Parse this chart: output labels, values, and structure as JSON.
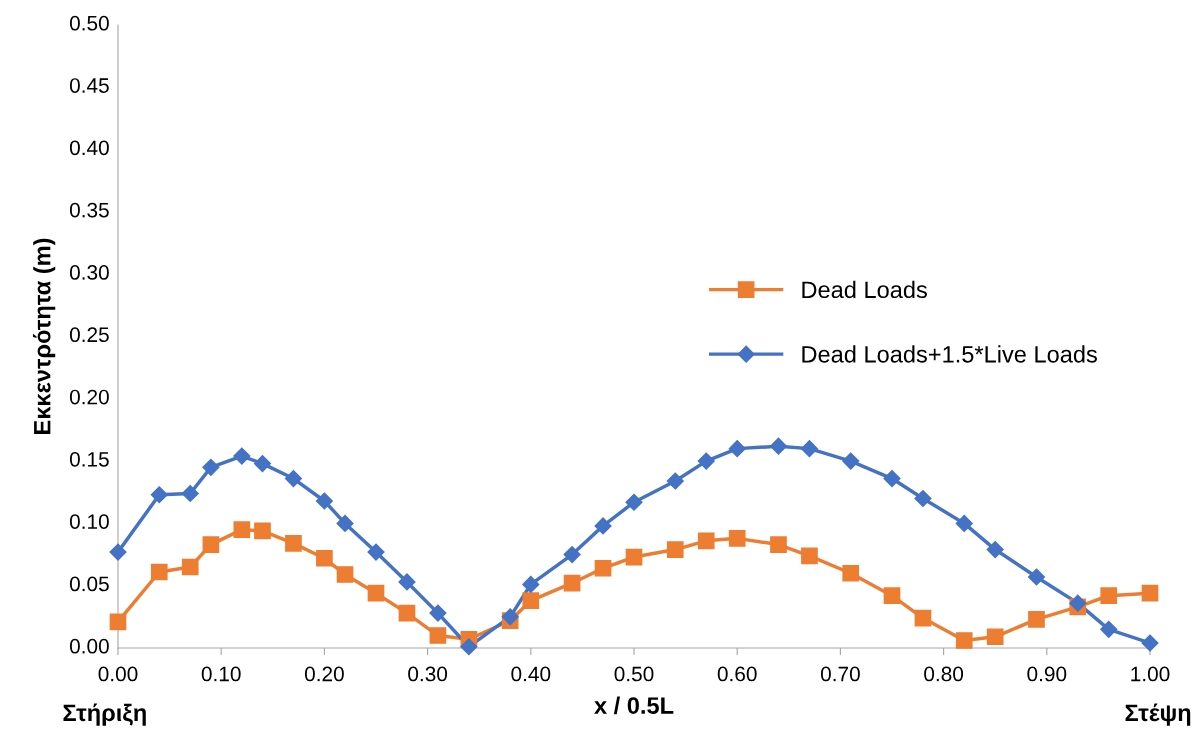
{
  "chart_data": {
    "type": "line",
    "xlabel": "x / 0.5L",
    "ylabel": "Εκκεντρότητα (m)",
    "x": [
      0,
      0.04,
      0.07,
      0.09,
      0.12,
      0.14,
      0.17,
      0.2,
      0.22,
      0.25,
      0.28,
      0.31,
      0.34,
      0.38,
      0.4,
      0.44,
      0.47,
      0.5,
      0.54,
      0.57,
      0.6,
      0.64,
      0.67,
      0.71,
      0.75,
      0.78,
      0.82,
      0.85,
      0.89,
      0.93,
      0.96,
      1.0
    ],
    "series": [
      {
        "name": "Dead Loads",
        "color": "#ed7d31",
        "marker": "square",
        "values": [
          0.021,
          0.061,
          0.065,
          0.083,
          0.095,
          0.094,
          0.084,
          0.072,
          0.059,
          0.044,
          0.028,
          0.01,
          0.007,
          0.022,
          0.038,
          0.052,
          0.064,
          0.073,
          0.079,
          0.086,
          0.088,
          0.083,
          0.074,
          0.06,
          0.042,
          0.024,
          0.006,
          0.009,
          0.023,
          0.033,
          0.042,
          0.044
        ]
      },
      {
        "name": "Dead Loads+1.5*Live Loads",
        "color": "#4472c4",
        "marker": "diamond",
        "values": [
          0.077,
          0.123,
          0.124,
          0.145,
          0.154,
          0.148,
          0.136,
          0.118,
          0.1,
          0.077,
          0.053,
          0.028,
          0.001,
          0.025,
          0.051,
          0.075,
          0.098,
          0.117,
          0.134,
          0.15,
          0.16,
          0.162,
          0.16,
          0.15,
          0.136,
          0.12,
          0.1,
          0.079,
          0.057,
          0.036,
          0.015,
          0.004
        ]
      }
    ],
    "xlim": [
      0,
      1
    ],
    "xticks": [
      {
        "value": 0,
        "label": "0.00"
      },
      {
        "value": 0.1,
        "label": "0.10"
      },
      {
        "value": 0.2,
        "label": "0.20"
      },
      {
        "value": 0.3,
        "label": "0.30"
      },
      {
        "value": 0.4,
        "label": "0.40"
      },
      {
        "value": 0.5,
        "label": "0.50"
      },
      {
        "value": 0.6,
        "label": "0.60"
      },
      {
        "value": 0.7,
        "label": "0.70"
      },
      {
        "value": 0.8,
        "label": "0.80"
      },
      {
        "value": 0.9,
        "label": "0.90"
      },
      {
        "value": 1,
        "label": "1.00"
      }
    ],
    "ylim": [
      0,
      0.5
    ],
    "yticks": [
      {
        "value": 0,
        "label": "0.00"
      },
      {
        "value": 0.05,
        "label": "0.05"
      },
      {
        "value": 0.1,
        "label": "0.10"
      },
      {
        "value": 0.15,
        "label": "0.15"
      },
      {
        "value": 0.2,
        "label": "0.20"
      },
      {
        "value": 0.25,
        "label": "0.25"
      },
      {
        "value": 0.3,
        "label": "0.30"
      },
      {
        "value": 0.35,
        "label": "0.35"
      },
      {
        "value": 0.4,
        "label": "0.40"
      },
      {
        "value": 0.45,
        "label": "0.45"
      },
      {
        "value": 0.5,
        "label": "0.50"
      }
    ],
    "annotations": [
      "Στήριξη",
      "Στέψη"
    ],
    "grid": false,
    "legend": "center right",
    "line_style": "solid"
  }
}
